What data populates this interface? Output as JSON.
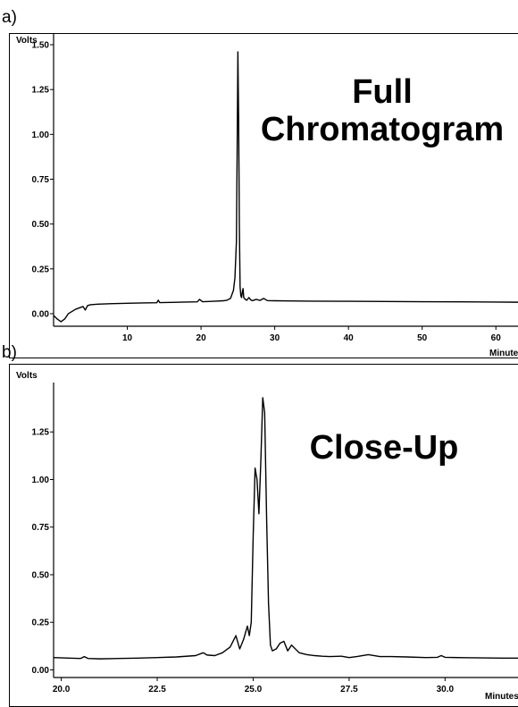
{
  "panels": {
    "a": {
      "label": "a)",
      "title_line1": "Full",
      "title_line2": "Chromatogram"
    },
    "b": {
      "label": "b)",
      "title": "Close-Up"
    }
  },
  "chart_data": [
    {
      "type": "line",
      "title": "Full Chromatogram",
      "xlabel": "Minutes",
      "ylabel": "Volts",
      "xlim": [
        0,
        63
      ],
      "ylim": [
        -0.07,
        1.55
      ],
      "xticks": [
        10,
        20,
        30,
        40,
        50,
        60
      ],
      "xtick_labels": [
        "10",
        "20",
        "30",
        "40",
        "50",
        "60"
      ],
      "yticks": [
        0.0,
        0.25,
        0.5,
        0.75,
        1.0,
        1.25,
        1.5
      ],
      "ytick_labels": [
        "0.00",
        "0.25",
        "0.50",
        "0.75",
        "1.00",
        "1.25",
        "1.50"
      ],
      "grid": false,
      "series": [
        {
          "x": [
            0.0,
            0.5,
            1.0,
            1.5,
            2.0,
            3.0,
            4.0,
            4.3,
            4.6,
            5.0,
            6.0,
            8.0,
            10.0,
            12.0,
            14.0,
            14.2,
            14.4,
            16.0,
            18.0,
            19.5,
            19.8,
            20.2,
            21.0,
            22.0,
            23.0,
            23.5,
            24.0,
            24.4,
            24.6,
            24.8,
            24.9,
            25.0,
            25.1,
            25.2,
            25.3,
            25.4,
            25.5,
            25.6,
            25.7,
            25.8,
            26.0,
            26.2,
            26.5,
            26.8,
            27.0,
            27.5,
            28.0,
            28.5,
            29.0,
            30.0,
            32.0,
            35.0,
            40.0,
            45.0,
            50.0,
            55.0,
            60.0,
            63.0
          ],
          "y": [
            -0.01,
            -0.03,
            -0.045,
            -0.03,
            0.0,
            0.025,
            0.04,
            0.02,
            0.045,
            0.05,
            0.053,
            0.056,
            0.058,
            0.06,
            0.061,
            0.075,
            0.062,
            0.063,
            0.065,
            0.066,
            0.08,
            0.067,
            0.068,
            0.07,
            0.072,
            0.075,
            0.085,
            0.13,
            0.2,
            0.4,
            0.9,
            1.46,
            1.1,
            0.5,
            0.15,
            0.1,
            0.09,
            0.12,
            0.14,
            0.09,
            0.08,
            0.075,
            0.09,
            0.075,
            0.073,
            0.08,
            0.074,
            0.085,
            0.073,
            0.072,
            0.071,
            0.07,
            0.069,
            0.068,
            0.067,
            0.066,
            0.065,
            0.064
          ]
        }
      ]
    },
    {
      "type": "line",
      "title": "Close-Up",
      "xlabel": "Minutes",
      "ylabel": "Volts",
      "xlim": [
        19.8,
        31.9
      ],
      "ylim": [
        -0.04,
        1.5
      ],
      "xticks": [
        20.0,
        22.5,
        25.0,
        27.5,
        30.0
      ],
      "xtick_labels": [
        "20.0",
        "22.5",
        "25.0",
        "27.5",
        "30.0"
      ],
      "yticks": [
        0.0,
        0.25,
        0.5,
        0.75,
        1.0,
        1.25
      ],
      "ytick_labels": [
        "0.00",
        "0.25",
        "0.50",
        "0.75",
        "1.00",
        "1.25"
      ],
      "grid": false,
      "series": [
        {
          "x": [
            19.8,
            20.2,
            20.5,
            20.6,
            20.7,
            21.0,
            21.5,
            22.0,
            22.5,
            23.0,
            23.5,
            23.7,
            23.8,
            24.0,
            24.2,
            24.4,
            24.55,
            24.65,
            24.75,
            24.85,
            24.9,
            24.95,
            25.0,
            25.05,
            25.1,
            25.15,
            25.2,
            25.25,
            25.3,
            25.35,
            25.4,
            25.45,
            25.5,
            25.6,
            25.7,
            25.8,
            25.9,
            26.0,
            26.2,
            26.4,
            26.6,
            26.8,
            27.0,
            27.3,
            27.5,
            27.7,
            28.0,
            28.3,
            28.6,
            29.0,
            29.5,
            29.8,
            29.9,
            30.0,
            30.5,
            31.0,
            31.5,
            31.9
          ],
          "y": [
            0.065,
            0.062,
            0.06,
            0.07,
            0.06,
            0.058,
            0.06,
            0.062,
            0.065,
            0.068,
            0.075,
            0.09,
            0.078,
            0.075,
            0.09,
            0.12,
            0.18,
            0.11,
            0.16,
            0.23,
            0.18,
            0.25,
            0.7,
            1.06,
            1.0,
            0.82,
            1.1,
            1.43,
            1.35,
            0.8,
            0.35,
            0.13,
            0.1,
            0.11,
            0.14,
            0.15,
            0.1,
            0.13,
            0.09,
            0.08,
            0.075,
            0.072,
            0.07,
            0.072,
            0.065,
            0.07,
            0.08,
            0.07,
            0.07,
            0.068,
            0.065,
            0.066,
            0.075,
            0.066,
            0.064,
            0.063,
            0.062,
            0.062
          ]
        }
      ]
    }
  ]
}
